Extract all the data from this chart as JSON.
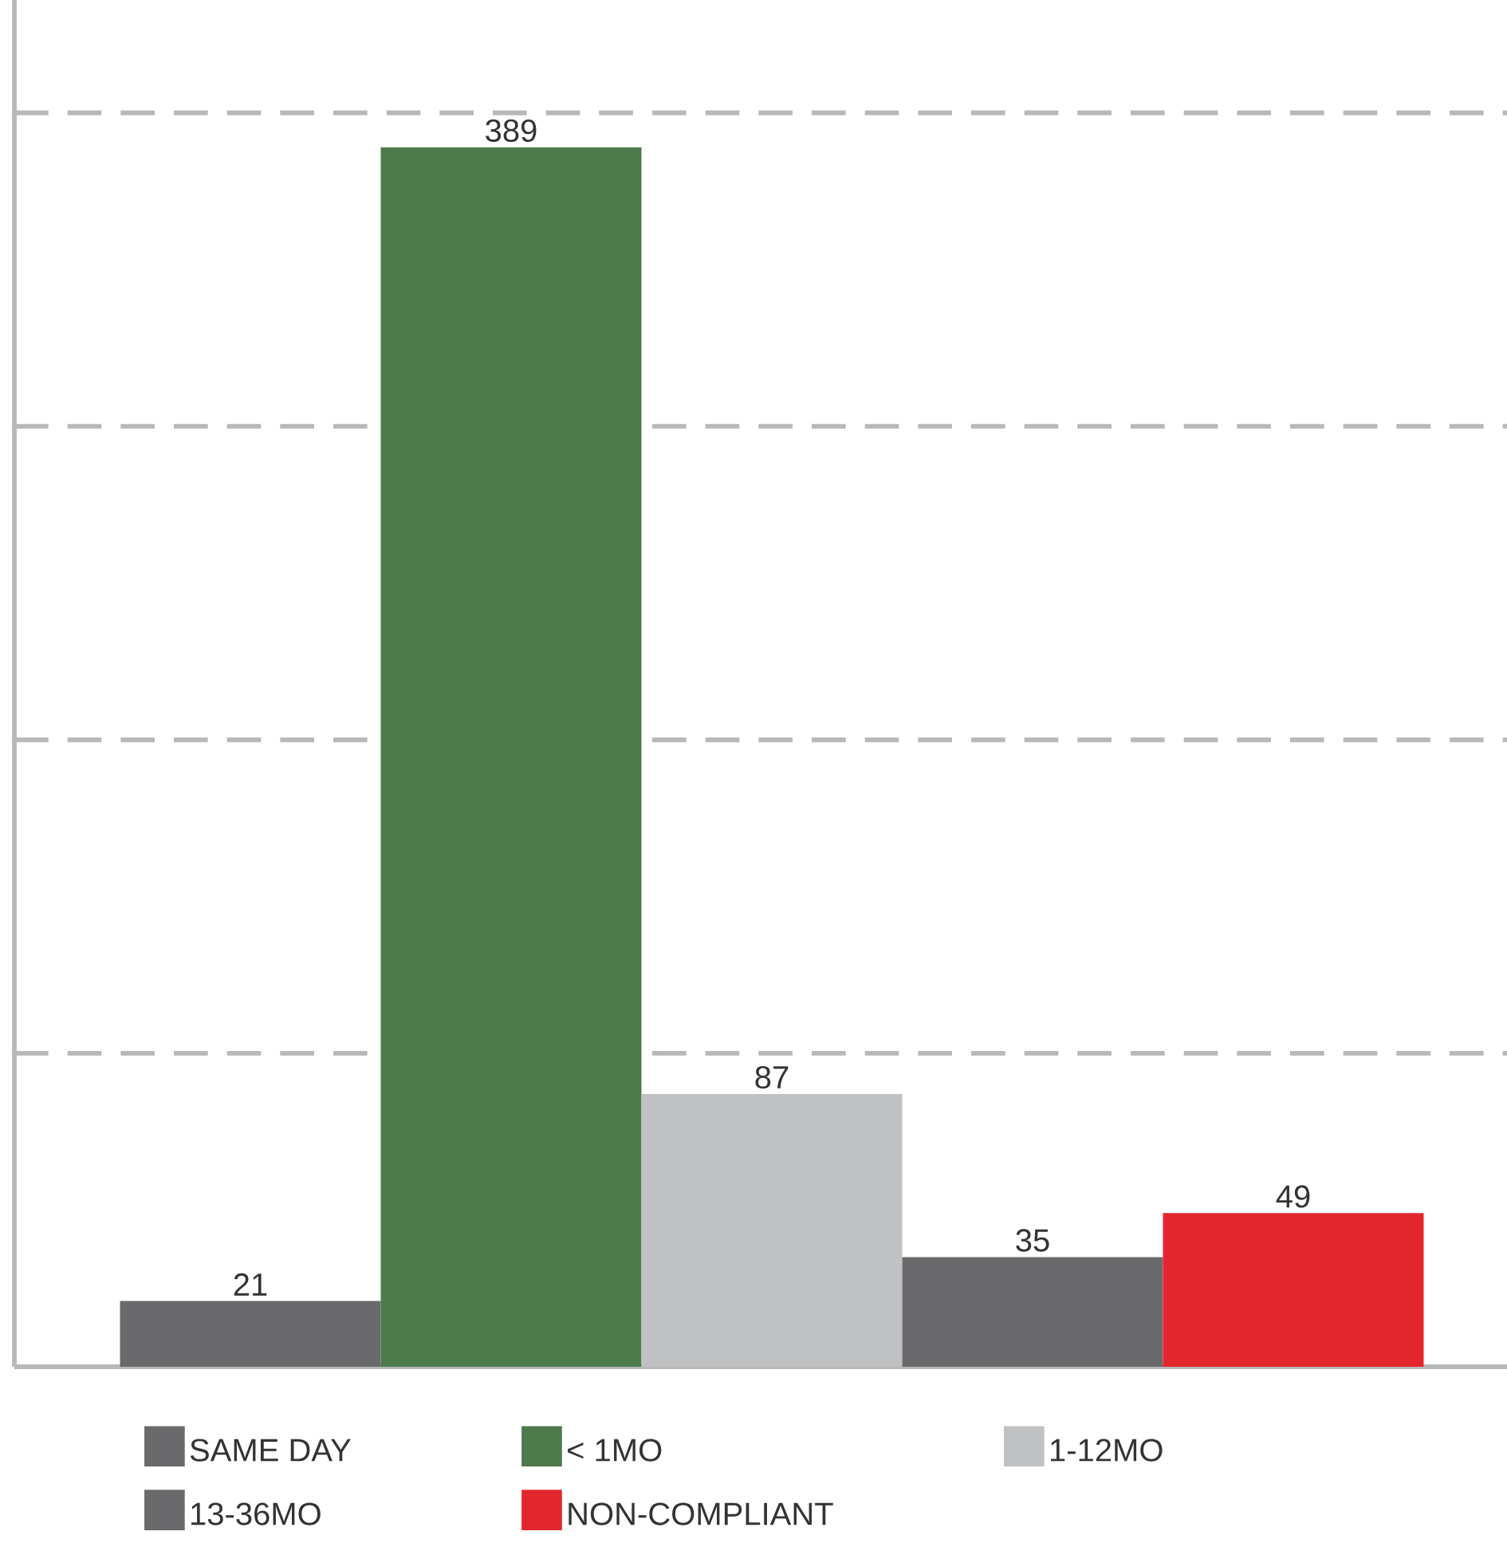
{
  "chart_data": {
    "type": "bar",
    "categories": [
      null
    ],
    "series": [
      {
        "name": "SAME DAY",
        "color": "#6a6a6c",
        "values": [
          21
        ]
      },
      {
        "name": "< 1MO",
        "color": "#4d7a4a",
        "values": [
          389
        ]
      },
      {
        "name": "1-12MO",
        "color": "#c0c1c3",
        "values": [
          87
        ]
      },
      {
        "name": "13-36MO",
        "color": "#6a6a6c",
        "values": [
          35
        ]
      },
      {
        "name": "NON-COMPLIANT",
        "color": "#e3262e",
        "values": [
          49
        ]
      }
    ],
    "ylim": [
      0,
      436
    ],
    "yticks": [
      {
        "value": 100,
        "label": null
      },
      {
        "value": 200,
        "label": null
      },
      {
        "value": 300,
        "label": null
      },
      {
        "value": 400,
        "label": null
      }
    ],
    "grid": "y",
    "data_labels": true,
    "legend": "bottom"
  }
}
